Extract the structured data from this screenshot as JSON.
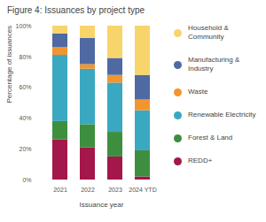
{
  "chart_data": {
    "type": "bar",
    "title": "Figure 4: Issuances by project type",
    "x_label": "Issuance year",
    "y_label": "Percentage of issuances",
    "categories": [
      "2021",
      "2022",
      "2023",
      "2024 YTD"
    ],
    "series": [
      {
        "name": "REDD+",
        "color": "#a3174a",
        "values": [
          26,
          21,
          15,
          2
        ]
      },
      {
        "name": "Forest & Land",
        "color": "#3d8f3f",
        "values": [
          12,
          15,
          16,
          17
        ]
      },
      {
        "name": "Renewable Electricity",
        "color": "#3aa8c1",
        "values": [
          43,
          36,
          32,
          26
        ]
      },
      {
        "name": "Waste",
        "color": "#f2952e",
        "values": [
          5,
          3,
          5,
          7
        ]
      },
      {
        "name": "Manufacturing & Industry",
        "color": "#4f6aa3",
        "values": [
          9,
          17,
          11,
          16
        ]
      },
      {
        "name": "Household & Community",
        "color": "#f8d56b",
        "values": [
          5,
          8,
          21,
          32
        ]
      }
    ],
    "ylim": [
      0,
      100
    ],
    "yticks": [
      {
        "value": 0,
        "label": "0%"
      },
      {
        "value": 20,
        "label": "20%"
      },
      {
        "value": 40,
        "label": "40%"
      },
      {
        "value": 60,
        "label": "60%"
      },
      {
        "value": 80,
        "label": "80%"
      },
      {
        "value": 100,
        "label": "100%"
      }
    ],
    "stacked": true,
    "grid": false,
    "legend": "right"
  }
}
